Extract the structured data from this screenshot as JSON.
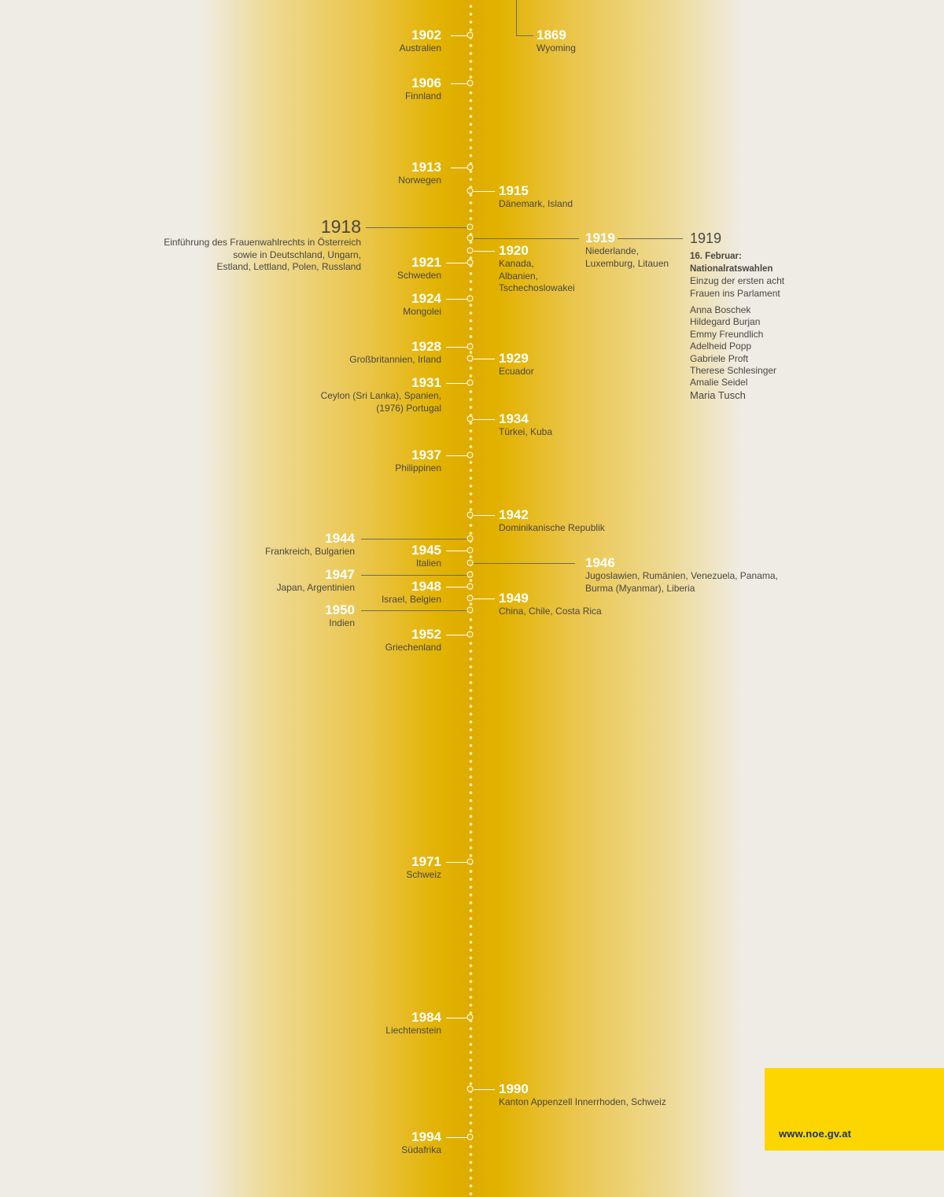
{
  "colors": {
    "accent": "#e2b000",
    "brand_box": "#fdd600",
    "url_text": "#1d3461",
    "dark_text": "#4a4740"
  },
  "timeline": {
    "top_left_entry": {
      "year": "1869",
      "country": "Wyoming"
    },
    "entries_left": [
      {
        "year": "1902",
        "country": "Australien"
      },
      {
        "year": "1906",
        "country": "Finnland"
      },
      {
        "year": "1913",
        "country": "Norwegen"
      },
      {
        "year": "1918",
        "country": "Einführung des Frauenwahlrechts in Österreich\nsowie in Deutschland, Ungarn,\nEstland, Lettland, Polen, Russland"
      },
      {
        "year": "1921",
        "country": "Schweden"
      },
      {
        "year": "1924",
        "country": "Mongolei"
      },
      {
        "year": "1928",
        "country": "Großbritannien, Irland"
      },
      {
        "year": "1931",
        "country": "Ceylon (Sri Lanka), Spanien,\n(1976) Portugal"
      },
      {
        "year": "1937",
        "country": "Philippinen"
      },
      {
        "year": "1944",
        "country": "Frankreich, Bulgarien"
      },
      {
        "year": "1945",
        "country": "Italien"
      },
      {
        "year": "1947",
        "country": "Japan, Argentinien"
      },
      {
        "year": "1948",
        "country": "Israel, Belgien"
      },
      {
        "year": "1950",
        "country": "Indien"
      },
      {
        "year": "1952",
        "country": "Griechenland"
      },
      {
        "year": "1971",
        "country": "Schweiz"
      },
      {
        "year": "1984",
        "country": "Liechtenstein"
      },
      {
        "year": "1994",
        "country": "Südafrika"
      }
    ],
    "entries_right": [
      {
        "year": "1915",
        "country": "Dänemark, Island"
      },
      {
        "year": "1919",
        "country": "Niederlande,\nLuxemburg, Litauen"
      },
      {
        "year": "1920",
        "country": "Kanada,\nAlbanien,\nTschechoslowakei"
      },
      {
        "year": "1929",
        "country": "Ecuador"
      },
      {
        "year": "1934",
        "country": "Türkei, Kuba"
      },
      {
        "year": "1942",
        "country": "Dominikanische Republik"
      },
      {
        "year": "1946",
        "country": "Jugoslawien, Rumänien, Venezuela, Panama,\nBurma (Myanmar), Liberia"
      },
      {
        "year": "1949",
        "country": "China, Chile, Costa Rica"
      },
      {
        "year": "1990",
        "country": "Kanton Appenzell Innerrhoden, Schweiz"
      }
    ]
  },
  "austria_panel": {
    "year": "1919",
    "date": "16. Februar:",
    "heading": "Nationalratswahlen",
    "text": "Einzug der ersten acht\nFrauen ins Parlament",
    "names": [
      "Anna Boschek",
      "Hildegard Burjan",
      "Emmy Freundlich",
      "Adelheid Popp",
      "Gabriele Proft",
      "Therese Schlesinger",
      "Amalie Seidel",
      "Maria Tusch"
    ]
  },
  "footer": {
    "url": "www.noe.gv.at"
  }
}
